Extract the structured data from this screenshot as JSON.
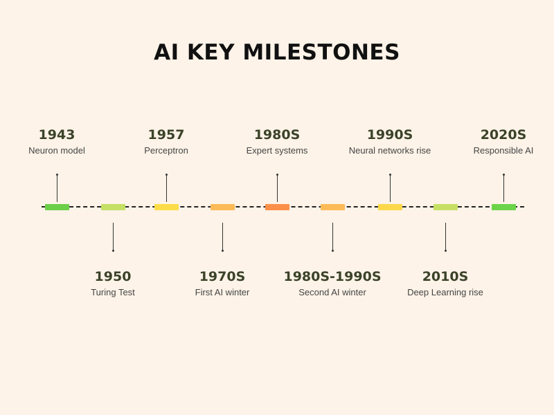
{
  "title": "AI KEY MILESTONES",
  "milestones": [
    {
      "year": "1943",
      "label": "Neuron model",
      "position": "above",
      "color": "#6ccf4a"
    },
    {
      "year": "1950",
      "label": "Turing Test",
      "position": "below",
      "color": "#c4e065"
    },
    {
      "year": "1957",
      "label": "Perceptron",
      "position": "above",
      "color": "#fddc4a"
    },
    {
      "year": "1970S",
      "label": "First AI winter",
      "position": "below",
      "color": "#fcbb58"
    },
    {
      "year": "1980S",
      "label": "Expert systems",
      "position": "above",
      "color": "#fb8f4a"
    },
    {
      "year": "1980S-1990S",
      "label": "Second AI winter",
      "position": "below",
      "color": "#fdbb58"
    },
    {
      "year": "1990S",
      "label": "Neural networks rise",
      "position": "above",
      "color": "#fdd84a"
    },
    {
      "year": "2010S",
      "label": "Deep Learning rise",
      "position": "below",
      "color": "#c6e065"
    },
    {
      "year": "2020S",
      "label": "Responsible AI",
      "position": "above",
      "color": "#6cd44a"
    }
  ]
}
